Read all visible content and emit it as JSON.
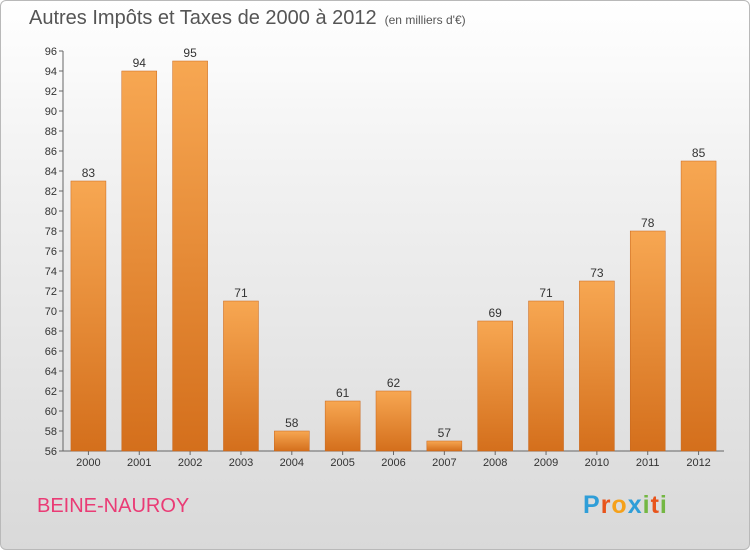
{
  "header": {
    "title": "Autres Impôts et Taxes de 2000 à 2012",
    "unit": "(en milliers d'€)"
  },
  "footer": {
    "commune": "BEINE-NAUROY",
    "logo_letters": [
      "P",
      "r",
      "o",
      "x",
      "i",
      "t",
      "i"
    ]
  },
  "colors": {
    "bar_light": "#f7a752",
    "bar_dark": "#d46f1c",
    "commune_text": "#ea3b75",
    "logo": [
      "#2f9ed8",
      "#e8541b",
      "#f5a11b",
      "#2f9ed8",
      "#74b743",
      "#e8541b",
      "#74b743"
    ]
  },
  "chart_data": {
    "type": "bar",
    "title": "Autres Impôts et Taxes de 2000 à 2012",
    "subtitle": "(en milliers d'€)",
    "categories": [
      "2000",
      "2001",
      "2002",
      "2003",
      "2004",
      "2005",
      "2006",
      "2007",
      "2008",
      "2009",
      "2010",
      "2011",
      "2012"
    ],
    "values": [
      83,
      94,
      95,
      71,
      58,
      61,
      62,
      57,
      69,
      71,
      73,
      78,
      85
    ],
    "ylim": [
      56,
      96
    ],
    "yticks": [
      56,
      58,
      60,
      62,
      64,
      66,
      68,
      70,
      72,
      74,
      76,
      78,
      80,
      82,
      84,
      86,
      88,
      90,
      92,
      94,
      96
    ],
    "grid": false,
    "xlabel": "",
    "ylabel": ""
  }
}
